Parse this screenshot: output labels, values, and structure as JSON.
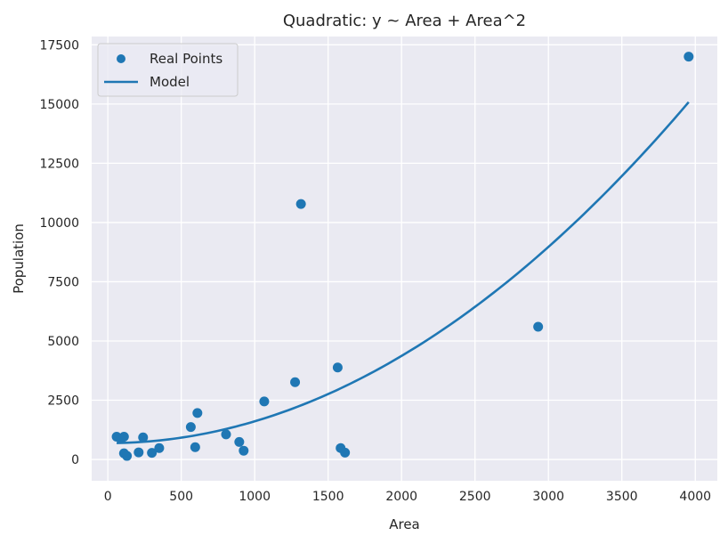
{
  "chart_data": {
    "type": "scatter",
    "title": "Quadratic: y ~ Area + Area^2",
    "xlabel": "Area",
    "ylabel": "Population",
    "xlim": [
      -110,
      4150
    ],
    "ylim": [
      -900,
      17850
    ],
    "xticks": [
      0,
      500,
      1000,
      1500,
      2000,
      2500,
      3000,
      3500,
      4000
    ],
    "yticks": [
      0,
      2500,
      5000,
      7500,
      10000,
      12500,
      15000,
      17500
    ],
    "grid": true,
    "legend_position": "top-left",
    "series": [
      {
        "name": "Real Points",
        "kind": "scatter",
        "color": "#1f77b4",
        "points": [
          {
            "x": 60,
            "y": 960
          },
          {
            "x": 90,
            "y": 870
          },
          {
            "x": 110,
            "y": 960
          },
          {
            "x": 110,
            "y": 260
          },
          {
            "x": 130,
            "y": 150
          },
          {
            "x": 210,
            "y": 300
          },
          {
            "x": 240,
            "y": 930
          },
          {
            "x": 300,
            "y": 280
          },
          {
            "x": 350,
            "y": 480
          },
          {
            "x": 565,
            "y": 1370
          },
          {
            "x": 595,
            "y": 520
          },
          {
            "x": 610,
            "y": 1960
          },
          {
            "x": 805,
            "y": 1060
          },
          {
            "x": 895,
            "y": 740
          },
          {
            "x": 925,
            "y": 370
          },
          {
            "x": 1065,
            "y": 2450
          },
          {
            "x": 1275,
            "y": 3260
          },
          {
            "x": 1315,
            "y": 10780
          },
          {
            "x": 1565,
            "y": 3880
          },
          {
            "x": 1585,
            "y": 480
          },
          {
            "x": 1615,
            "y": 290
          },
          {
            "x": 2930,
            "y": 5600
          },
          {
            "x": 3955,
            "y": 17000
          }
        ]
      },
      {
        "name": "Model",
        "kind": "line",
        "color": "#1f77b4",
        "equation": {
          "a": 0.00092,
          "b": 0.0,
          "c": 690
        },
        "x_range": [
          60,
          3955
        ]
      }
    ]
  }
}
